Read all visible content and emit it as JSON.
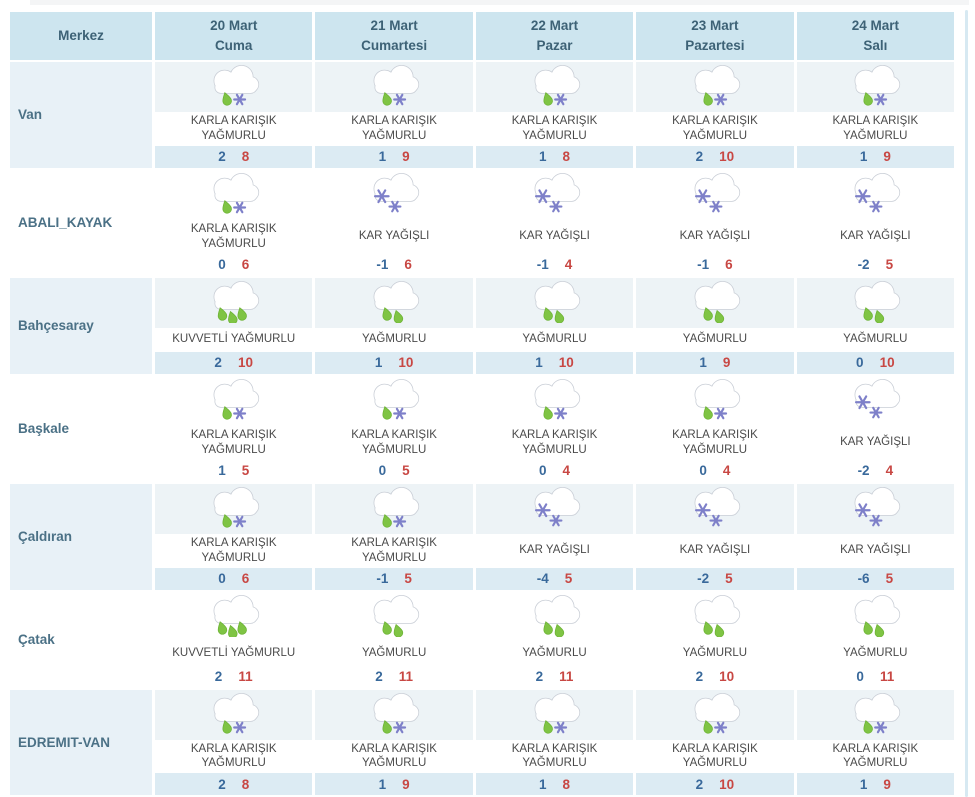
{
  "table": {
    "header": {
      "merkez": "Merkez",
      "days": [
        {
          "date": "20 Mart",
          "day": "Cuma"
        },
        {
          "date": "21 Mart",
          "day": "Cumartesi"
        },
        {
          "date": "22 Mart",
          "day": "Pazar"
        },
        {
          "date": "23 Mart",
          "day": "Pazartesi"
        },
        {
          "date": "24 Mart",
          "day": "Salı"
        }
      ]
    },
    "rows": [
      {
        "name": "Van",
        "cells": [
          {
            "icon": "sleet-icon",
            "desc": "KARLA KARIŞIK YAĞMURLU",
            "min": "2",
            "max": "8"
          },
          {
            "icon": "sleet-icon",
            "desc": "KARLA KARIŞIK YAĞMURLU",
            "min": "1",
            "max": "9"
          },
          {
            "icon": "sleet-icon",
            "desc": "KARLA KARIŞIK YAĞMURLU",
            "min": "1",
            "max": "8"
          },
          {
            "icon": "sleet-icon",
            "desc": "KARLA KARIŞIK YAĞMURLU",
            "min": "2",
            "max": "10"
          },
          {
            "icon": "sleet-icon",
            "desc": "KARLA KARIŞIK YAĞMURLU",
            "min": "1",
            "max": "9"
          }
        ]
      },
      {
        "name": "ABALI_KAYAK",
        "cells": [
          {
            "icon": "sleet-icon",
            "desc": "KARLA KARIŞIK YAĞMURLU",
            "min": "0",
            "max": "6"
          },
          {
            "icon": "snow-icon",
            "desc": "KAR YAĞIŞLI",
            "min": "-1",
            "max": "6"
          },
          {
            "icon": "snow-icon",
            "desc": "KAR YAĞIŞLI",
            "min": "-1",
            "max": "4"
          },
          {
            "icon": "snow-icon",
            "desc": "KAR YAĞIŞLI",
            "min": "-1",
            "max": "6"
          },
          {
            "icon": "snow-icon",
            "desc": "KAR YAĞIŞLI",
            "min": "-2",
            "max": "5"
          }
        ]
      },
      {
        "name": "Bahçesaray",
        "cells": [
          {
            "icon": "heavy-rain-icon",
            "desc": "KUVVETLİ YAĞMURLU",
            "min": "2",
            "max": "10"
          },
          {
            "icon": "rain-icon",
            "desc": "YAĞMURLU",
            "min": "1",
            "max": "10"
          },
          {
            "icon": "rain-icon",
            "desc": "YAĞMURLU",
            "min": "1",
            "max": "10"
          },
          {
            "icon": "rain-icon",
            "desc": "YAĞMURLU",
            "min": "1",
            "max": "9"
          },
          {
            "icon": "rain-icon",
            "desc": "YAĞMURLU",
            "min": "0",
            "max": "10"
          }
        ]
      },
      {
        "name": "Başkale",
        "cells": [
          {
            "icon": "sleet-icon",
            "desc": "KARLA KARIŞIK YAĞMURLU",
            "min": "1",
            "max": "5"
          },
          {
            "icon": "sleet-icon",
            "desc": "KARLA KARIŞIK YAĞMURLU",
            "min": "0",
            "max": "5"
          },
          {
            "icon": "sleet-icon",
            "desc": "KARLA KARIŞIK YAĞMURLU",
            "min": "0",
            "max": "4"
          },
          {
            "icon": "sleet-icon",
            "desc": "KARLA KARIŞIK YAĞMURLU",
            "min": "0",
            "max": "4"
          },
          {
            "icon": "snow-icon",
            "desc": "KAR YAĞIŞLI",
            "min": "-2",
            "max": "4"
          }
        ]
      },
      {
        "name": "Çaldıran",
        "cells": [
          {
            "icon": "sleet-icon",
            "desc": "KARLA KARIŞIK YAĞMURLU",
            "min": "0",
            "max": "6"
          },
          {
            "icon": "sleet-icon",
            "desc": "KARLA KARIŞIK YAĞMURLU",
            "min": "-1",
            "max": "5"
          },
          {
            "icon": "snow-icon",
            "desc": "KAR YAĞIŞLI",
            "min": "-4",
            "max": "5"
          },
          {
            "icon": "snow-icon",
            "desc": "KAR YAĞIŞLI",
            "min": "-2",
            "max": "5"
          },
          {
            "icon": "snow-icon",
            "desc": "KAR YAĞIŞLI",
            "min": "-6",
            "max": "5"
          }
        ]
      },
      {
        "name": "Çatak",
        "cells": [
          {
            "icon": "heavy-rain-icon",
            "desc": "KUVVETLİ YAĞMURLU",
            "min": "2",
            "max": "11"
          },
          {
            "icon": "rain-icon",
            "desc": "YAĞMURLU",
            "min": "2",
            "max": "11"
          },
          {
            "icon": "rain-icon",
            "desc": "YAĞMURLU",
            "min": "2",
            "max": "11"
          },
          {
            "icon": "rain-icon",
            "desc": "YAĞMURLU",
            "min": "2",
            "max": "10"
          },
          {
            "icon": "rain-icon",
            "desc": "YAĞMURLU",
            "min": "0",
            "max": "11"
          }
        ]
      },
      {
        "name": "EDREMIT-VAN",
        "cells": [
          {
            "icon": "sleet-icon",
            "desc": "KARLA KARIŞIK YAĞMURLU",
            "min": "2",
            "max": "8"
          },
          {
            "icon": "sleet-icon",
            "desc": "KARLA KARIŞIK YAĞMURLU",
            "min": "1",
            "max": "9"
          },
          {
            "icon": "sleet-icon",
            "desc": "KARLA KARIŞIK YAĞMURLU",
            "min": "1",
            "max": "8"
          },
          {
            "icon": "sleet-icon",
            "desc": "KARLA KARIŞIK YAĞMURLU",
            "min": "2",
            "max": "10"
          },
          {
            "icon": "sleet-icon",
            "desc": "KARLA KARIŞIK YAĞMURLU",
            "min": "1",
            "max": "9"
          }
        ]
      }
    ]
  },
  "colors": {
    "header_bg": "#cde5ef",
    "header_text": "#3d6276",
    "stripe_name_bg": "#e8f1f7",
    "stripe_icon_bg": "#edf3f6",
    "stripe_temp_bg": "#dcebf3",
    "location_text": "#4b7186",
    "min_temp": "#39699b",
    "max_temp": "#c84743",
    "rain_drop": "#7fc444",
    "snowflake": "#7e80c9",
    "cloud_outline": "#c9ced6"
  }
}
